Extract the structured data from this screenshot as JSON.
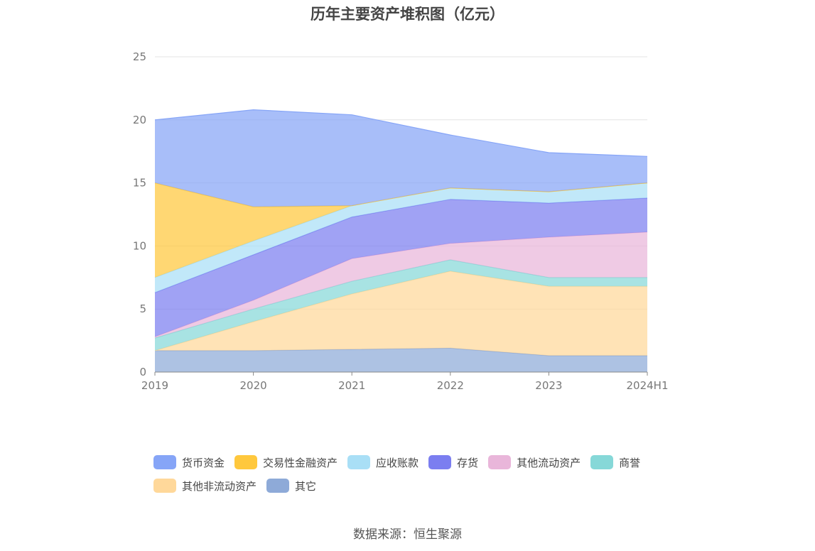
{
  "chart_data": {
    "type": "area",
    "stacked": true,
    "title": "历年主要资产堆积图（亿元）",
    "categories": [
      "2019",
      "2020",
      "2021",
      "2022",
      "2023",
      "2024H1"
    ],
    "ylim": [
      0,
      25
    ],
    "yticks": [
      0,
      5,
      10,
      15,
      20,
      25
    ],
    "grid": true,
    "legend_position": "bottom",
    "series": [
      {
        "name": "其它",
        "color": "#8eaad8",
        "values": [
          1.7,
          1.7,
          1.8,
          1.9,
          1.3,
          1.3
        ]
      },
      {
        "name": "其他非流动资产",
        "color": "#ffd89a",
        "values": [
          0.0,
          2.3,
          4.4,
          6.1,
          5.5,
          5.5
        ]
      },
      {
        "name": "商誉",
        "color": "#86d8d8",
        "values": [
          1.0,
          1.0,
          1.0,
          0.9,
          0.7,
          0.7
        ]
      },
      {
        "name": "其他流动资产",
        "color": "#e9b6da",
        "values": [
          0.1,
          0.7,
          1.8,
          1.3,
          3.2,
          3.6
        ]
      },
      {
        "name": "存货",
        "color": "#7b7ef0",
        "values": [
          3.5,
          3.6,
          3.3,
          3.5,
          2.7,
          2.7
        ]
      },
      {
        "name": "应收账款",
        "color": "#a9dff6",
        "values": [
          1.2,
          1.1,
          0.9,
          0.9,
          0.9,
          1.2
        ]
      },
      {
        "name": "交易性金融资产",
        "color": "#ffc83d",
        "values": [
          7.5,
          2.7,
          0.0,
          0.0,
          0.0,
          0.0
        ]
      },
      {
        "name": "货币资金",
        "color": "#86a5f7",
        "values": [
          5.0,
          7.7,
          7.2,
          4.2,
          3.1,
          2.1
        ]
      }
    ]
  },
  "legend_rows": [
    [
      "货币资金",
      "交易性金融资产",
      "应收账款",
      "存货",
      "其他流动资产",
      "商誉"
    ],
    [
      "其他非流动资产",
      "其它"
    ]
  ],
  "source": "数据来源：恒生聚源"
}
